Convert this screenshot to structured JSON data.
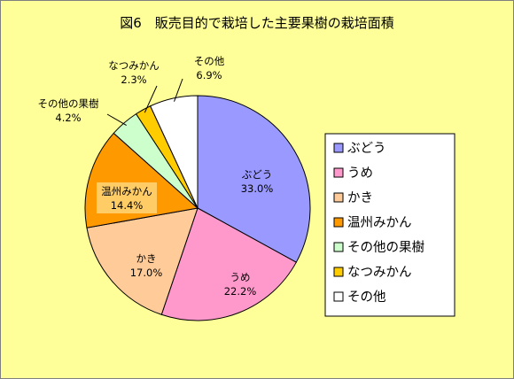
{
  "chart_data": {
    "type": "pie",
    "title": "図6　販売目的で栽培した主要果樹の栽培面積",
    "categories": [
      "ぶどう",
      "うめ",
      "かき",
      "温州みかん",
      "その他の果樹",
      "なつみかん",
      "その他"
    ],
    "values": [
      33.0,
      22.2,
      17.0,
      14.4,
      4.2,
      2.3,
      6.9
    ],
    "value_labels": [
      "33.0%",
      "22.2%",
      "17.0%",
      "14.4%",
      "4.2%",
      "2.3%",
      "6.9%"
    ],
    "colors": [
      "#9999ff",
      "#ff99cc",
      "#ffcc99",
      "#ff9900",
      "#ccffcc",
      "#ffcc00",
      "#ffffff"
    ],
    "legend": {
      "position": "right",
      "entries": [
        "ぶどう",
        "うめ",
        "かき",
        "温州みかん",
        "その他の果樹",
        "なつみかん",
        "その他"
      ]
    },
    "start_angle": "12 o'clock",
    "direction": "clockwise"
  }
}
